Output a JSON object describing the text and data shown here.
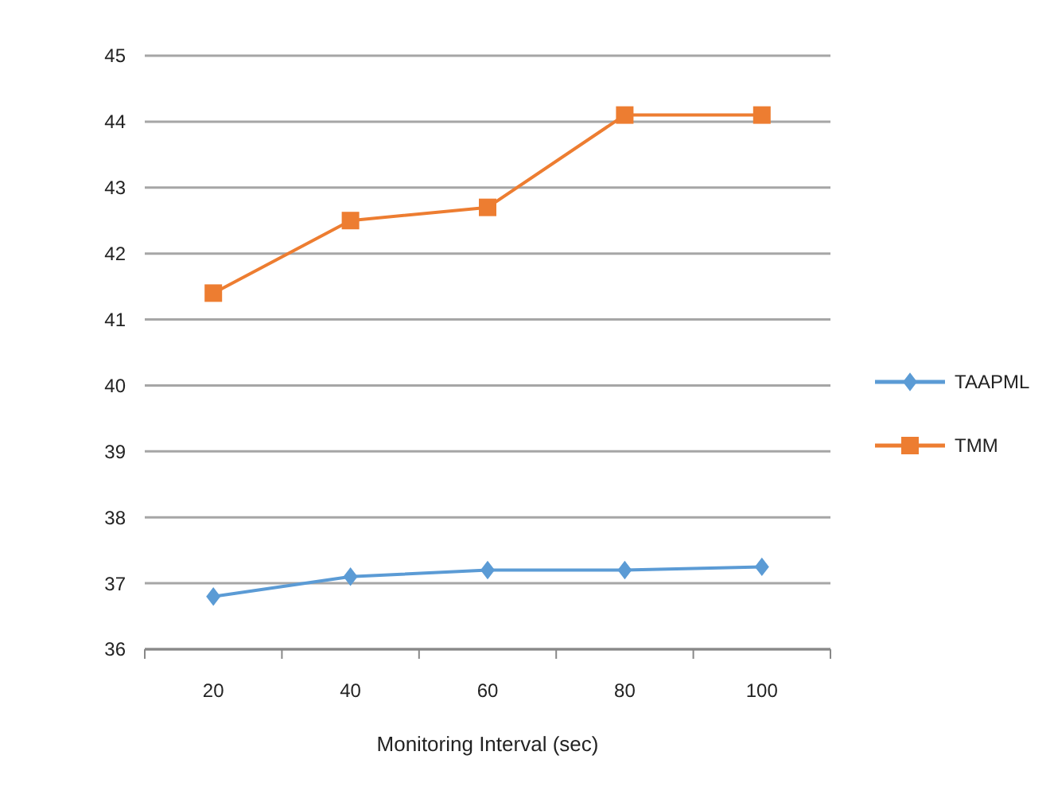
{
  "chart_data": {
    "type": "line",
    "xlabel": "Monitoring Interval  (sec)",
    "categories": [
      "20",
      "40",
      "60",
      "80",
      "100"
    ],
    "series": [
      {
        "name": "TAAPML",
        "color": "#5b9bd5",
        "marker": "diamond",
        "values": [
          36.8,
          37.1,
          37.2,
          37.2,
          37.25
        ]
      },
      {
        "name": "TMM",
        "color": "#ed7d31",
        "marker": "square",
        "values": [
          41.4,
          42.5,
          42.7,
          44.1,
          44.1
        ]
      }
    ],
    "ylim": [
      36,
      45
    ],
    "yticks": [
      45,
      44,
      43,
      42,
      41,
      40,
      39,
      38,
      37,
      36
    ],
    "grid": "y",
    "legend": "right"
  }
}
